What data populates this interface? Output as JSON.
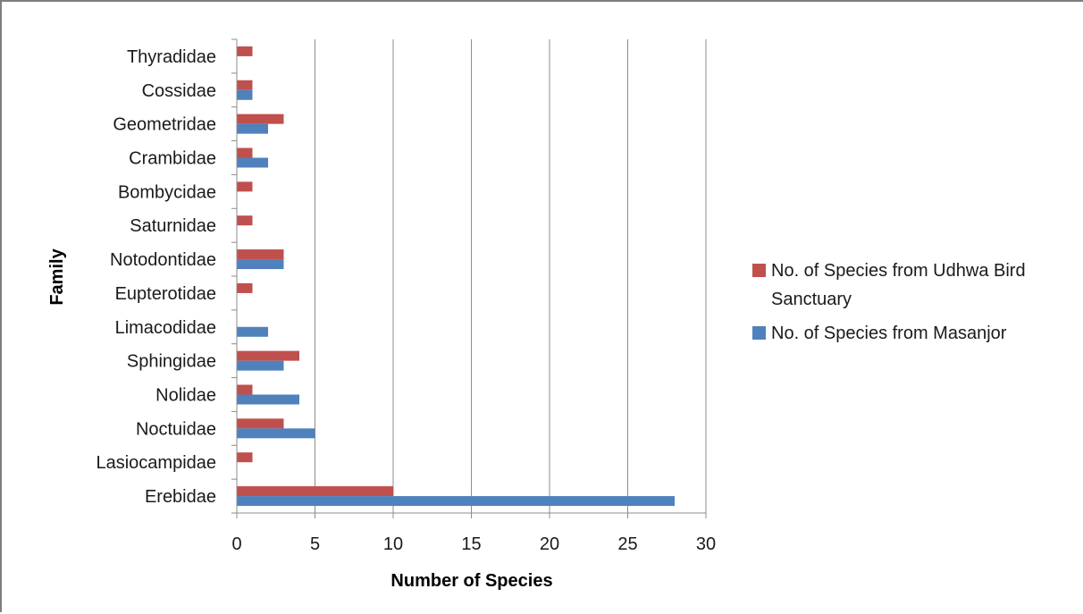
{
  "chart_data": {
    "type": "bar",
    "orientation": "horizontal",
    "title": "",
    "xlabel": "Number of Species",
    "ylabel": "Family",
    "xlim": [
      0,
      30
    ],
    "xticks": [
      0,
      5,
      10,
      15,
      20,
      25,
      30
    ],
    "grid": "vertical",
    "legend_position": "right",
    "categories": [
      "Erebidae",
      "Lasiocampidae",
      "Noctuidae",
      "Nolidae",
      "Sphingidae",
      "Limacodidae",
      "Eupterotidae",
      "Notodontidae",
      "Saturnidae",
      "Bombycidae",
      "Crambidae",
      "Geometridae",
      "Cossidae",
      "Thyradidae"
    ],
    "series": [
      {
        "name": "No. of Species from Masanjor",
        "color": "#4f81bd",
        "values": [
          28,
          0,
          5,
          4,
          3,
          2,
          0,
          3,
          0,
          0,
          2,
          2,
          1,
          0
        ]
      },
      {
        "name": "No. of Species from Udhwa Bird Sanctuary",
        "color": "#c0504d",
        "values": [
          10,
          1,
          3,
          1,
          4,
          0,
          1,
          3,
          1,
          1,
          1,
          3,
          1,
          1
        ]
      }
    ]
  }
}
